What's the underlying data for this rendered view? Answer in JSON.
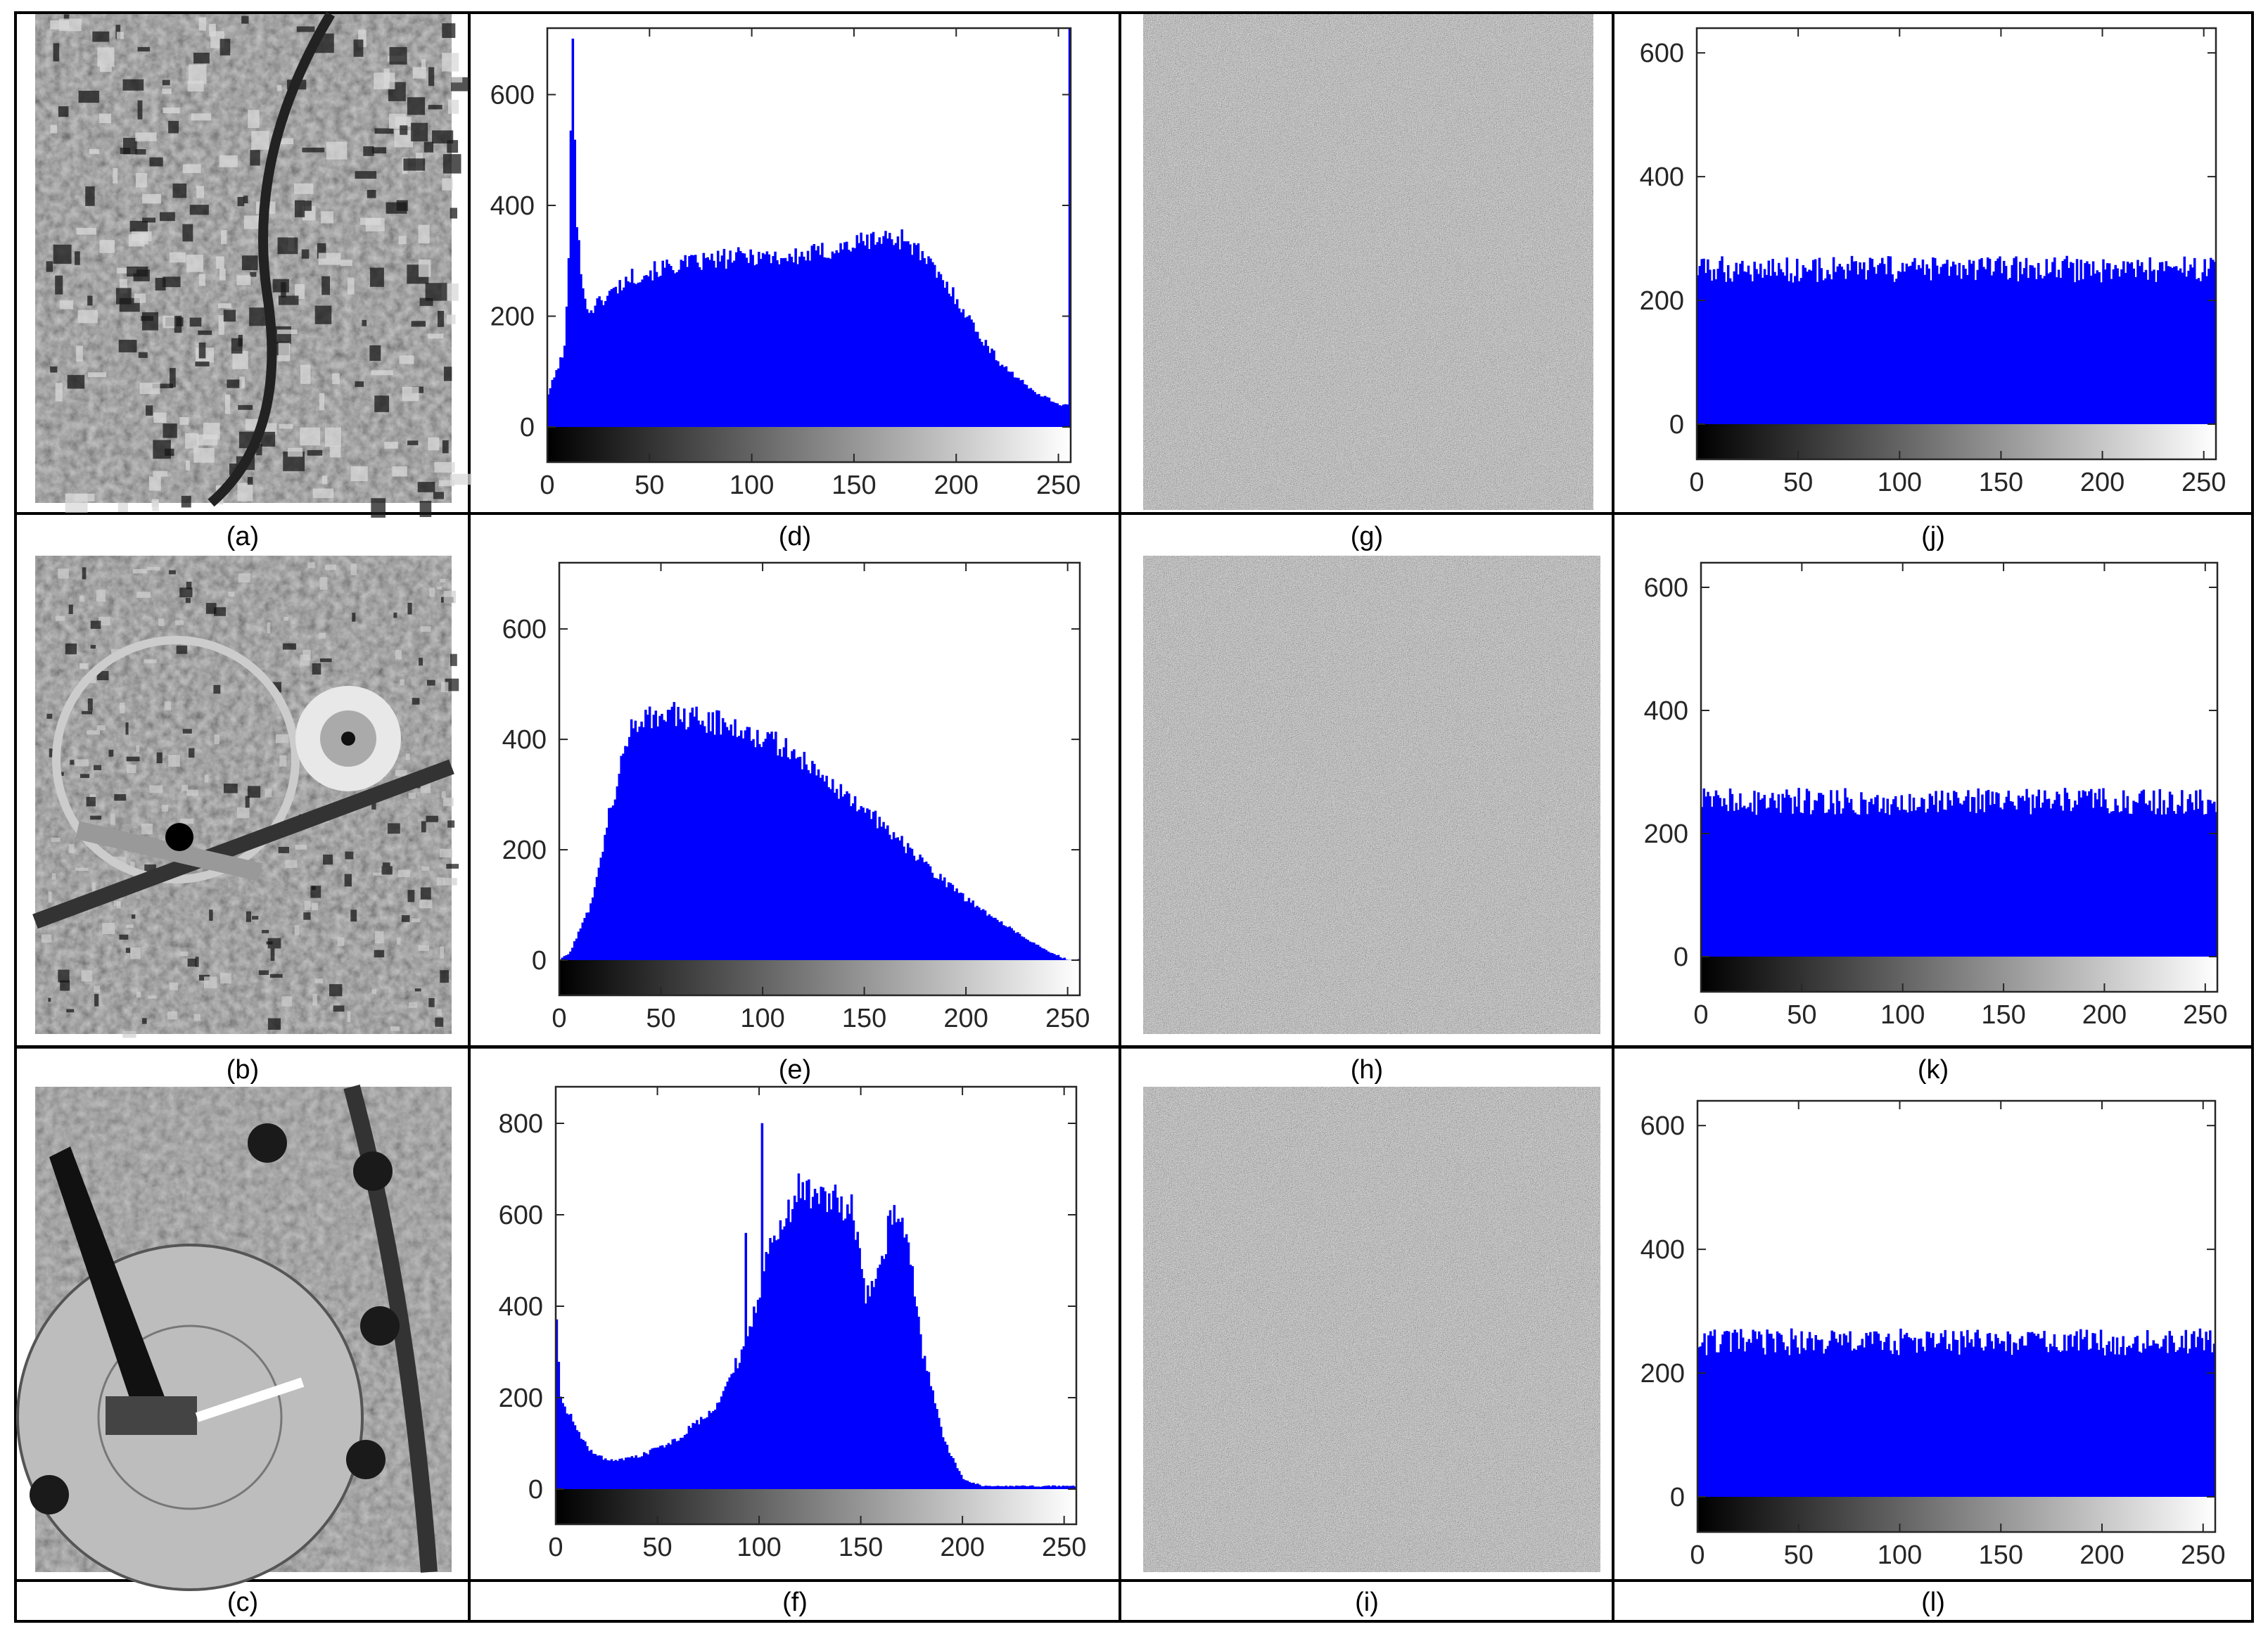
{
  "colors": {
    "bar": "#0000ff",
    "frame": "#000000",
    "axis_text": "#262626"
  },
  "rows": [
    {
      "photo": {
        "label": "(a)",
        "type": "aerial-photo",
        "icon": "aerial-city-blocks-photo"
      },
      "hist": {
        "label": "(d)"
      },
      "cipher": {
        "label": "(g)",
        "type": "noise-image"
      },
      "hist_enc": {
        "label": "(j)"
      }
    },
    {
      "photo": {
        "label": "(b)",
        "type": "aerial-photo",
        "icon": "aerial-stadium-highway-photo"
      },
      "hist": {
        "label": "(e)"
      },
      "cipher": {
        "label": "(h)",
        "type": "noise-image"
      },
      "hist_enc": {
        "label": "(k)"
      }
    },
    {
      "photo": {
        "label": "(c)",
        "type": "aerial-photo",
        "icon": "aerial-monument-photo"
      },
      "hist": {
        "label": "(f)"
      },
      "cipher": {
        "label": "(i)",
        "type": "noise-image"
      },
      "hist_enc": {
        "label": "(l)"
      }
    }
  ],
  "chart_data": [
    {
      "id": "d",
      "type": "bar",
      "title": "",
      "xlabel": "",
      "ylabel": "",
      "xlim": [
        0,
        256
      ],
      "ylim": [
        0,
        720
      ],
      "x_ticks": [
        0,
        50,
        100,
        150,
        200,
        250
      ],
      "y_ticks": [
        0,
        200,
        400,
        600
      ],
      "colorbar": "grayscale 0-255",
      "profile": [
        [
          0,
          60
        ],
        [
          8,
          140
        ],
        [
          10,
          300
        ],
        [
          12,
          720
        ],
        [
          14,
          380
        ],
        [
          17,
          240
        ],
        [
          20,
          210
        ],
        [
          30,
          240
        ],
        [
          40,
          270
        ],
        [
          60,
          290
        ],
        [
          80,
          300
        ],
        [
          100,
          310
        ],
        [
          120,
          305
        ],
        [
          140,
          320
        ],
        [
          160,
          340
        ],
        [
          175,
          340
        ],
        [
          185,
          300
        ],
        [
          200,
          230
        ],
        [
          210,
          170
        ],
        [
          220,
          120
        ],
        [
          235,
          70
        ],
        [
          250,
          40
        ],
        [
          254,
          40
        ],
        [
          255,
          720
        ]
      ]
    },
    {
      "id": "e",
      "type": "bar",
      "title": "",
      "xlabel": "",
      "ylabel": "",
      "xlim": [
        0,
        256
      ],
      "ylim": [
        0,
        720
      ],
      "x_ticks": [
        0,
        50,
        100,
        150,
        200,
        250
      ],
      "y_ticks": [
        0,
        200,
        400,
        600
      ],
      "colorbar": "grayscale 0-255",
      "profile": [
        [
          0,
          0
        ],
        [
          5,
          15
        ],
        [
          15,
          100
        ],
        [
          25,
          280
        ],
        [
          35,
          420
        ],
        [
          40,
          445
        ],
        [
          60,
          440
        ],
        [
          80,
          430
        ],
        [
          100,
          405
        ],
        [
          120,
          360
        ],
        [
          140,
          300
        ],
        [
          160,
          240
        ],
        [
          180,
          170
        ],
        [
          200,
          110
        ],
        [
          220,
          60
        ],
        [
          240,
          15
        ],
        [
          250,
          0
        ],
        [
          255,
          0
        ]
      ]
    },
    {
      "id": "f",
      "type": "bar",
      "title": "",
      "xlabel": "",
      "ylabel": "",
      "xlim": [
        0,
        256
      ],
      "ylim": [
        0,
        880
      ],
      "x_ticks": [
        0,
        50,
        100,
        150,
        200,
        250
      ],
      "y_ticks": [
        0,
        200,
        400,
        600,
        800
      ],
      "colorbar": "grayscale 0-255",
      "profile": [
        [
          0,
          380
        ],
        [
          2,
          200
        ],
        [
          8,
          150
        ],
        [
          15,
          90
        ],
        [
          25,
          60
        ],
        [
          40,
          70
        ],
        [
          60,
          110
        ],
        [
          80,
          190
        ],
        [
          95,
          340
        ],
        [
          105,
          540
        ],
        [
          115,
          620
        ],
        [
          125,
          650
        ],
        [
          135,
          640
        ],
        [
          145,
          610
        ],
        [
          152,
          430
        ],
        [
          158,
          460
        ],
        [
          165,
          610
        ],
        [
          172,
          560
        ],
        [
          180,
          300
        ],
        [
          190,
          110
        ],
        [
          200,
          20
        ],
        [
          210,
          6
        ],
        [
          255,
          6
        ]
      ],
      "spikes": [
        [
          93,
          560
        ],
        [
          101,
          800
        ],
        [
          119,
          690
        ]
      ]
    },
    {
      "id": "j",
      "type": "bar",
      "title": "",
      "xlabel": "",
      "ylabel": "",
      "xlim": [
        0,
        256
      ],
      "ylim": [
        0,
        640
      ],
      "x_ticks": [
        0,
        50,
        100,
        150,
        200,
        250
      ],
      "y_ticks": [
        0,
        200,
        400,
        600
      ],
      "colorbar": "grayscale 0-255",
      "mean": 250,
      "spread": 22
    },
    {
      "id": "k",
      "type": "bar",
      "title": "",
      "xlabel": "",
      "ylabel": "",
      "xlim": [
        0,
        256
      ],
      "ylim": [
        0,
        640
      ],
      "x_ticks": [
        0,
        50,
        100,
        150,
        200,
        250
      ],
      "y_ticks": [
        0,
        200,
        400,
        600
      ],
      "colorbar": "grayscale 0-255",
      "mean": 252,
      "spread": 22
    },
    {
      "id": "l",
      "type": "bar",
      "title": "",
      "xlabel": "",
      "ylabel": "",
      "xlim": [
        0,
        256
      ],
      "ylim": [
        0,
        640
      ],
      "x_ticks": [
        0,
        50,
        100,
        150,
        200,
        250
      ],
      "y_ticks": [
        0,
        200,
        400,
        600
      ],
      "colorbar": "grayscale 0-255",
      "mean": 250,
      "spread": 22
    }
  ]
}
